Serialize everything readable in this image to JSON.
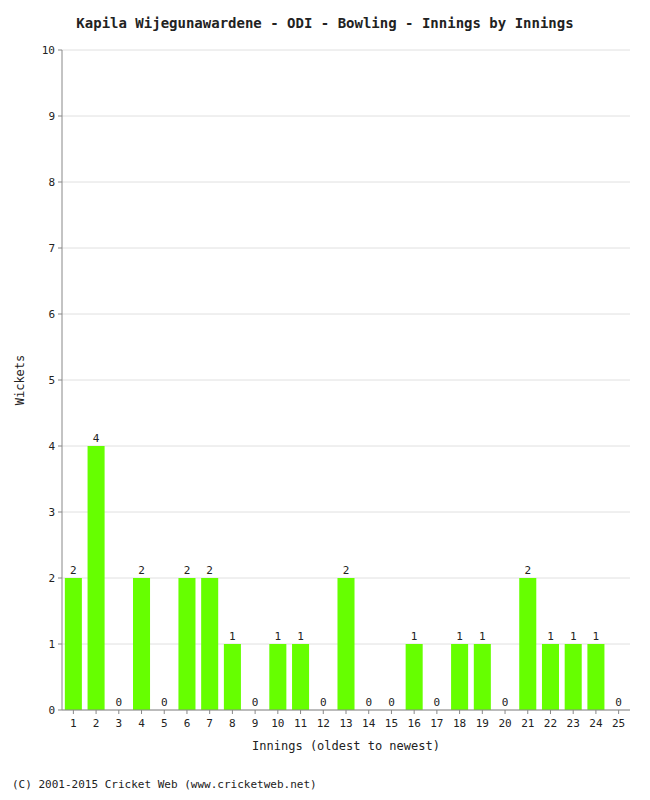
{
  "chart_data": {
    "type": "bar",
    "title": "Kapila Wijegunawardene - ODI - Bowling - Innings by Innings",
    "x_label": "Innings (oldest to newest)",
    "y_label": "Wickets",
    "categories": [
      "1",
      "2",
      "3",
      "4",
      "5",
      "6",
      "7",
      "8",
      "9",
      "10",
      "11",
      "12",
      "13",
      "14",
      "15",
      "16",
      "17",
      "18",
      "19",
      "20",
      "21",
      "22",
      "23",
      "24",
      "25"
    ],
    "values": [
      2,
      4,
      0,
      2,
      0,
      2,
      2,
      1,
      0,
      1,
      1,
      0,
      2,
      0,
      0,
      1,
      0,
      1,
      1,
      0,
      2,
      1,
      1,
      1,
      0
    ],
    "color": "#66ff00",
    "ylim": [
      0,
      10
    ],
    "yticks": [
      0,
      1,
      2,
      3,
      4,
      5,
      6,
      7,
      8,
      9,
      10
    ],
    "grid": true,
    "data_labels": true,
    "annotations": [
      "(C) 2001-2015 Cricket Web (www.cricketweb.net)"
    ]
  }
}
